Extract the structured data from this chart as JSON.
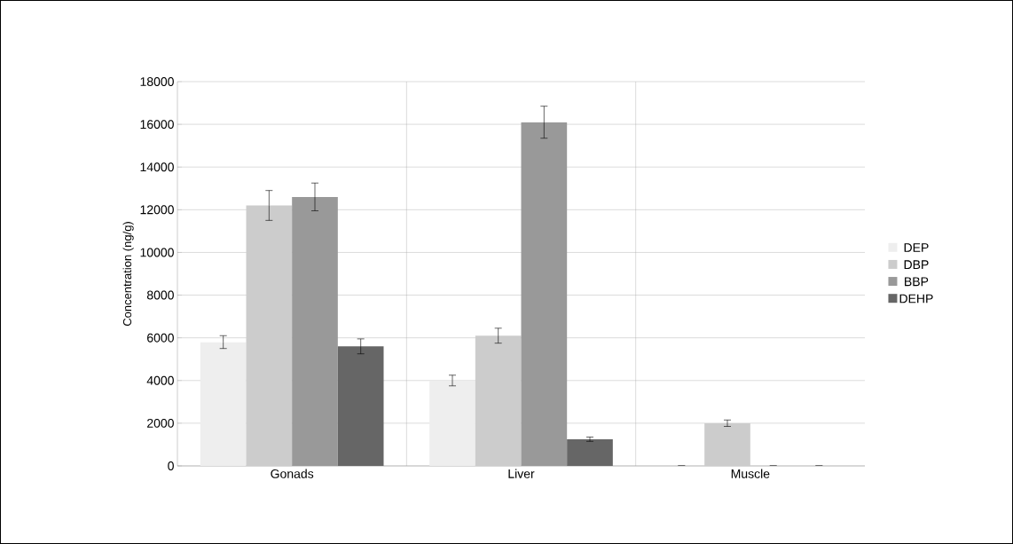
{
  "chart_data": {
    "type": "bar",
    "ylabel": "Concentration (ng/g)",
    "categories": [
      "Gonads",
      "Liver",
      "Muscle"
    ],
    "series": [
      {
        "name": "DEP",
        "color": "#eeeeee",
        "values": [
          5800,
          4000,
          0
        ],
        "errors": [
          300,
          250,
          null
        ]
      },
      {
        "name": "DBP",
        "color": "#cccccc",
        "values": [
          12200,
          6100,
          2000
        ],
        "errors": [
          700,
          350,
          150
        ]
      },
      {
        "name": "BBP",
        "color": "#999999",
        "values": [
          12600,
          16100,
          0
        ],
        "errors": [
          650,
          750,
          null
        ]
      },
      {
        "name": "DEHP",
        "color": "#666666",
        "values": [
          5600,
          1250,
          0
        ],
        "errors": [
          350,
          100,
          null
        ]
      }
    ],
    "ylim": [
      0,
      18000
    ],
    "yticks": [
      0,
      2000,
      4000,
      6000,
      8000,
      10000,
      12000,
      14000,
      16000,
      18000
    ],
    "grid": true,
    "legend": "right"
  }
}
